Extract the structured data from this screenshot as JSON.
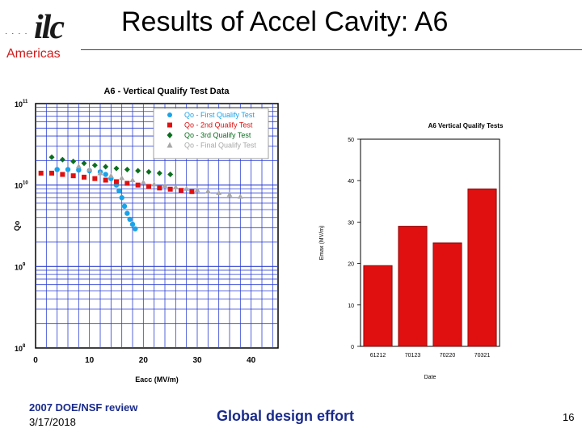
{
  "header": {
    "logo_dots": "· · · ·",
    "logo_mark": "ilc",
    "logo_sub": "Americas",
    "title": "Results of Accel Cavity: A6"
  },
  "footer": {
    "review": "2007 DOE/NSF review",
    "date": "3/17/2018",
    "tagline": "Global design effort",
    "page": "16"
  },
  "chart_data": [
    {
      "type": "scatter",
      "title": "A6 - Vertical Qualify Test Data",
      "xlabel": "Eacc (MV/m)",
      "ylabel": "Qo",
      "xlim": [
        0,
        45
      ],
      "ylim": [
        100000000.0,
        100000000000.0
      ],
      "yscale": "log",
      "xticks": [
        "0",
        "10",
        "20",
        "30",
        "40"
      ],
      "yticks": [
        {
          "base": "10",
          "exp": "11"
        },
        {
          "base": "10",
          "exp": "10"
        },
        {
          "base": "10",
          "exp": "9"
        },
        {
          "base": "10",
          "exp": "8"
        }
      ],
      "grid": true,
      "legend_position": "top-right",
      "series": [
        {
          "name": "Qo - First Qualify Test",
          "color": "#1aa3e8",
          "marker": "circle",
          "points": [
            [
              4,
              15500000000.0
            ],
            [
              6,
              15500000000.0
            ],
            [
              8,
              15300000000.0
            ],
            [
              10,
              15000000000.0
            ],
            [
              12,
              14500000000.0
            ],
            [
              13,
              13500000000.0
            ],
            [
              14,
              12000000000.0
            ],
            [
              15,
              10000000000.0
            ],
            [
              15.5,
              8500000000.0
            ],
            [
              16,
              7000000000.0
            ],
            [
              16.5,
              5500000000.0
            ],
            [
              17,
              4500000000.0
            ],
            [
              17.5,
              3800000000.0
            ],
            [
              18,
              3300000000.0
            ],
            [
              18.5,
              2900000000.0
            ]
          ]
        },
        {
          "name": "Qo - 2nd Qualify Test",
          "color": "#e01010",
          "marker": "square",
          "points": [
            [
              1,
              14000000000.0
            ],
            [
              3,
              14000000000.0
            ],
            [
              5,
              13500000000.0
            ],
            [
              7,
              13000000000.0
            ],
            [
              9,
              12500000000.0
            ],
            [
              11,
              12000000000.0
            ],
            [
              13,
              11500000000.0
            ],
            [
              15,
              11000000000.0
            ],
            [
              17,
              10500000000.0
            ],
            [
              19,
              10000000000.0
            ],
            [
              21,
              9600000000.0
            ],
            [
              23,
              9200000000.0
            ],
            [
              25,
              8900000000.0
            ],
            [
              27,
              8600000000.0
            ],
            [
              29,
              8300000000.0
            ]
          ]
        },
        {
          "name": "Qo - 3rd Qualify Test",
          "color": "#0b6e1f",
          "marker": "diamond",
          "points": [
            [
              3,
              22000000000.0
            ],
            [
              5,
              20500000000.0
            ],
            [
              7,
              19500000000.0
            ],
            [
              9,
              18500000000.0
            ],
            [
              11,
              17500000000.0
            ],
            [
              13,
              16800000000.0
            ],
            [
              15,
              16000000000.0
            ],
            [
              17,
              15500000000.0
            ],
            [
              19,
              15000000000.0
            ],
            [
              21,
              14500000000.0
            ],
            [
              23,
              14000000000.0
            ],
            [
              25,
              13500000000.0
            ]
          ]
        },
        {
          "name": "Qo - Final Qualify Test",
          "color": "#a8a8a8",
          "marker": "triangle",
          "points": [
            [
              8,
              17000000000.0
            ],
            [
              10,
              15500000000.0
            ],
            [
              12,
              14000000000.0
            ],
            [
              14,
              13000000000.0
            ],
            [
              16,
              12200000000.0
            ],
            [
              18,
              11500000000.0
            ],
            [
              20,
              10800000000.0
            ],
            [
              22,
              10200000000.0
            ],
            [
              24,
              9800000000.0
            ],
            [
              26,
              9400000000.0
            ],
            [
              28,
              9000000000.0
            ],
            [
              30,
              8700000000.0
            ],
            [
              32,
              8400000000.0
            ],
            [
              34,
              8000000000.0
            ],
            [
              36,
              7600000000.0
            ],
            [
              38,
              7200000000.0
            ]
          ]
        }
      ]
    },
    {
      "type": "bar",
      "title": "A6 Vertical Qualify Tests",
      "xlabel": "Date",
      "ylabel": "Emax (MV/m)",
      "categories": [
        "61212",
        "70123",
        "70220",
        "70321"
      ],
      "values": [
        19.5,
        29,
        25,
        38
      ],
      "ylim": [
        0,
        50
      ],
      "yticks": [
        "0",
        "10",
        "20",
        "30",
        "40",
        "50"
      ],
      "bar_color": "#e01010",
      "grid": false
    }
  ]
}
